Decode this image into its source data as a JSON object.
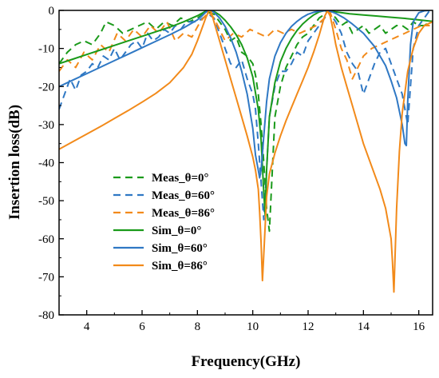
{
  "chart_data": {
    "type": "line",
    "title": "",
    "xlabel": "Frequency(GHz)",
    "ylabel": "Insertion loss(dB)",
    "xlim": [
      3,
      16.5
    ],
    "ylim": [
      -80,
      0
    ],
    "xticks": [
      4,
      6,
      8,
      10,
      12,
      14,
      16
    ],
    "yticks": [
      0,
      -10,
      -20,
      -30,
      -40,
      -50,
      -60,
      -70,
      -80
    ],
    "grid": false,
    "legend_position": "center-left",
    "series": [
      {
        "name": "Meas_θ=0°",
        "style": "dashed",
        "color": "#1a9a1a",
        "x": [
          3.0,
          3.3,
          3.6,
          3.9,
          4.2,
          4.5,
          4.7,
          5.0,
          5.3,
          5.6,
          5.9,
          6.2,
          6.5,
          6.8,
          7.1,
          7.4,
          7.7,
          8.0,
          8.2,
          8.4,
          8.6,
          8.8,
          9.0,
          9.2,
          9.4,
          9.6,
          9.8,
          10.0,
          10.1,
          10.2,
          10.3,
          10.4,
          10.5,
          10.6,
          10.8,
          11.0,
          11.2,
          11.4,
          11.6,
          11.8,
          12.0,
          12.2,
          12.4,
          12.6,
          12.7,
          12.8,
          13.0,
          13.2,
          13.4,
          13.6,
          13.8,
          14.0,
          14.2,
          14.4,
          14.6,
          14.8,
          15.0,
          15.2,
          15.4,
          15.6,
          15.8,
          16.0,
          16.2,
          16.4
        ],
        "y": [
          -14,
          -11,
          -9,
          -8,
          -9,
          -6,
          -3,
          -4,
          -6,
          -5,
          -4,
          -3,
          -5,
          -3,
          -4,
          -2,
          -3,
          -2,
          -1,
          -0.5,
          -1,
          -3,
          -5,
          -8,
          -7,
          -11,
          -12,
          -14,
          -17,
          -22,
          -30,
          -40,
          -52,
          -58,
          -28,
          -20,
          -15,
          -12,
          -9,
          -7,
          -6,
          -4,
          -2,
          -1,
          0,
          -0.5,
          -2,
          -4,
          -3,
          -6,
          -5,
          -4,
          -6,
          -5,
          -4,
          -6,
          -5,
          -4,
          -4,
          -5,
          -3,
          -4,
          -4,
          -3
        ]
      },
      {
        "name": "Meas_θ=60°",
        "style": "dashed",
        "color": "#2f78c4",
        "x": [
          3.0,
          3.2,
          3.4,
          3.6,
          3.8,
          4.0,
          4.2,
          4.4,
          4.6,
          4.8,
          5.0,
          5.2,
          5.4,
          5.6,
          5.8,
          6.0,
          6.2,
          6.4,
          6.6,
          6.8,
          7.0,
          7.2,
          7.4,
          7.6,
          7.8,
          8.0,
          8.2,
          8.4,
          8.6,
          8.8,
          9.0,
          9.2,
          9.4,
          9.6,
          9.8,
          10.0,
          10.1,
          10.2,
          10.3,
          10.4,
          10.5,
          10.6,
          10.8,
          11.0,
          11.2,
          11.4,
          11.6,
          11.8,
          12.0,
          12.2,
          12.4,
          12.6,
          12.7,
          12.8,
          13.0,
          13.2,
          13.4,
          13.6,
          13.8,
          14.0,
          14.2,
          14.4,
          14.6,
          14.8,
          15.0,
          15.2,
          15.4,
          15.6,
          15.8,
          16.0,
          16.2,
          16.4
        ],
        "y": [
          -26,
          -22,
          -18,
          -21,
          -17,
          -16,
          -14,
          -15,
          -12,
          -13,
          -10,
          -13,
          -11,
          -9,
          -8,
          -10,
          -6,
          -8,
          -7,
          -5,
          -6,
          -4,
          -5,
          -3,
          -3,
          -3,
          -2,
          -1,
          -2,
          -6,
          -10,
          -14,
          -15,
          -13,
          -18,
          -22,
          -26,
          -35,
          -45,
          -55,
          -42,
          -28,
          -20,
          -16,
          -16,
          -14,
          -11,
          -12,
          -8,
          -6,
          -4,
          -2,
          0,
          -1,
          -3,
          -6,
          -11,
          -14,
          -16,
          -22,
          -18,
          -14,
          -11,
          -10,
          -14,
          -18,
          -22,
          -30,
          -10,
          -4,
          -2,
          0
        ]
      },
      {
        "name": "Meas_θ=86°",
        "style": "dashed",
        "color": "#f28a1a",
        "x": [
          3.0,
          3.3,
          3.6,
          3.9,
          4.2,
          4.5,
          4.8,
          5.1,
          5.4,
          5.7,
          6.0,
          6.3,
          6.6,
          6.9,
          7.2,
          7.5,
          7.8,
          8.1,
          8.4,
          8.6,
          8.8,
          9.0,
          9.3,
          9.6,
          9.9,
          10.2,
          10.5,
          10.8,
          11.1,
          11.4,
          11.7,
          12.0,
          12.3,
          12.6,
          12.8,
          13.0,
          13.2,
          13.4,
          13.6,
          13.8,
          14.0,
          14.3,
          14.6,
          14.9,
          15.2,
          15.5,
          15.8,
          16.1,
          16.4
        ],
        "y": [
          -16,
          -13,
          -15,
          -11,
          -13,
          -9,
          -11,
          -6,
          -8,
          -5,
          -7,
          -4,
          -6,
          -3,
          -8,
          -6,
          -7,
          -3,
          -0.5,
          -2,
          -5,
          -8,
          -6,
          -7,
          -5,
          -6,
          -7,
          -5,
          -6,
          -5,
          -6,
          -5,
          -4,
          -2,
          -0.5,
          -5,
          -10,
          -13,
          -18,
          -15,
          -12,
          -10,
          -9,
          -8,
          -7,
          -6,
          -5,
          -4,
          -4
        ]
      },
      {
        "name": "Sim_θ=0°",
        "style": "solid",
        "color": "#1a9a1a",
        "x": [
          3.0,
          3.5,
          4.0,
          4.5,
          5.0,
          5.5,
          6.0,
          6.5,
          7.0,
          7.5,
          8.0,
          8.2,
          8.3,
          8.4,
          8.5,
          8.6,
          8.8,
          9.0,
          9.2,
          9.4,
          9.6,
          9.8,
          10.0,
          10.2,
          10.3,
          10.4,
          10.45,
          10.5,
          10.6,
          10.8,
          11.0,
          11.2,
          11.4,
          11.6,
          11.8,
          12.0,
          12.2,
          12.4,
          12.6,
          12.7,
          12.8,
          13.0,
          13.5,
          14.0,
          14.5,
          15.0,
          15.5,
          16.0,
          16.5
        ],
        "y": [
          -14,
          -12.8,
          -11.6,
          -10.4,
          -9.2,
          -8.0,
          -6.8,
          -5.6,
          -4.4,
          -3.0,
          -1.4,
          -0.6,
          -0.2,
          0,
          -0.1,
          -0.3,
          -1.2,
          -2.6,
          -4.3,
          -6.4,
          -9.0,
          -12.5,
          -17.5,
          -26,
          -34,
          -48,
          -54,
          -42,
          -28,
          -19,
          -13.5,
          -10,
          -7.4,
          -5.3,
          -3.6,
          -2.3,
          -1.2,
          -0.4,
          -0.05,
          0,
          -0.1,
          -0.4,
          -0.9,
          -1.2,
          -1.5,
          -1.8,
          -2.1,
          -2.5,
          -2.9
        ]
      },
      {
        "name": "Sim_θ=60°",
        "style": "solid",
        "color": "#2f78c4",
        "x": [
          3.0,
          3.5,
          4.0,
          4.5,
          5.0,
          5.5,
          6.0,
          6.5,
          7.0,
          7.5,
          8.0,
          8.2,
          8.3,
          8.4,
          8.5,
          8.6,
          8.8,
          9.0,
          9.2,
          9.4,
          9.6,
          9.8,
          10.0,
          10.1,
          10.2,
          10.25,
          10.3,
          10.4,
          10.5,
          10.6,
          10.8,
          11.0,
          11.2,
          11.4,
          11.6,
          11.8,
          12.0,
          12.2,
          12.4,
          12.6,
          12.7,
          12.8,
          13.0,
          13.3,
          13.6,
          14.0,
          14.4,
          14.8,
          15.0,
          15.2,
          15.4,
          15.5,
          15.55,
          15.6,
          15.7,
          15.8,
          16.0,
          16.2,
          16.4
        ],
        "y": [
          -20,
          -18.3,
          -16.6,
          -14.9,
          -13.2,
          -11.5,
          -9.8,
          -8.1,
          -6.4,
          -4.6,
          -2.5,
          -1.2,
          -0.5,
          -0.1,
          -0.1,
          -0.5,
          -2.0,
          -4.2,
          -7.2,
          -11,
          -16,
          -22,
          -31,
          -38,
          -42,
          -44,
          -42,
          -33,
          -24,
          -18,
          -12,
          -8.5,
          -6,
          -4.2,
          -2.9,
          -1.8,
          -1.0,
          -0.5,
          -0.2,
          -0.1,
          0,
          -0.2,
          -0.8,
          -2.0,
          -3.6,
          -6.0,
          -9.5,
          -14.5,
          -18.5,
          -23,
          -30,
          -35,
          -35.5,
          -24,
          -9,
          -3,
          -0.6,
          -0.1,
          0
        ]
      },
      {
        "name": "Sim_θ=86°",
        "style": "solid",
        "color": "#f28a1a",
        "x": [
          3.0,
          3.5,
          4.0,
          4.5,
          5.0,
          5.5,
          6.0,
          6.5,
          7.0,
          7.5,
          7.8,
          8.0,
          8.2,
          8.3,
          8.4,
          8.45,
          8.5,
          8.6,
          8.8,
          9.0,
          9.2,
          9.4,
          9.6,
          9.8,
          10.0,
          10.1,
          10.2,
          10.25,
          10.3,
          10.35,
          10.4,
          10.5,
          10.6,
          10.8,
          11.0,
          11.2,
          11.4,
          11.6,
          11.8,
          12.0,
          12.2,
          12.4,
          12.5,
          12.6,
          12.7,
          12.8,
          12.9,
          13.0,
          13.2,
          13.4,
          13.6,
          13.8,
          14.0,
          14.3,
          14.6,
          14.8,
          15.0,
          15.05,
          15.1,
          15.15,
          15.2,
          15.3,
          15.4,
          15.6,
          15.8,
          16.0,
          16.2,
          16.5
        ],
        "y": [
          -36.5,
          -34.5,
          -32.5,
          -30.5,
          -28.4,
          -26.3,
          -24.1,
          -21.8,
          -19,
          -15,
          -11.5,
          -8,
          -4,
          -2,
          -0.3,
          0,
          -0.5,
          -3,
          -8,
          -13,
          -18,
          -23,
          -28,
          -33,
          -38.5,
          -42,
          -47,
          -53,
          -61,
          -71,
          -64,
          -49,
          -43,
          -37.5,
          -33,
          -29,
          -25.5,
          -22,
          -18.5,
          -15,
          -11,
          -6.5,
          -4,
          -1.5,
          -0.1,
          -1.5,
          -5,
          -9,
          -15,
          -20,
          -25,
          -30,
          -35,
          -41,
          -47,
          -52,
          -60,
          -66,
          -74,
          -63,
          -52,
          -37,
          -27,
          -16,
          -10,
          -6,
          -4,
          -3
        ]
      }
    ]
  }
}
